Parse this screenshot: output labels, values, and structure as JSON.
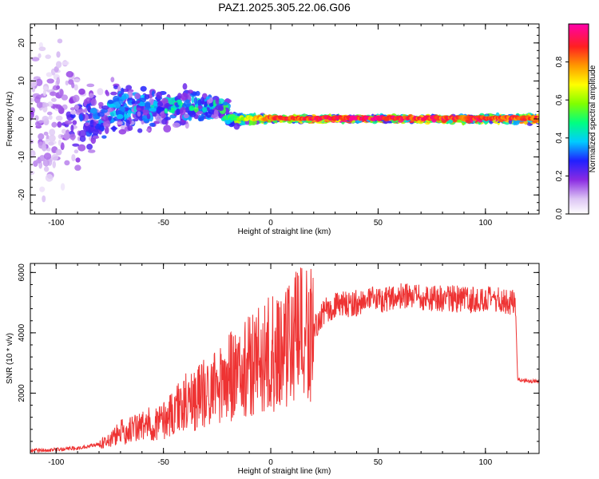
{
  "chart_data": [
    {
      "type": "heatmap",
      "title": "PAZ1.2025.305.22.06.G06",
      "xlabel": "Height of straight line (km)",
      "ylabel": "Frequency (Hz)",
      "xlim": [
        -112,
        125
      ],
      "ylim": [
        -25,
        25
      ],
      "xticks": [
        -100,
        -50,
        0,
        50,
        100
      ],
      "yticks": [
        -20,
        -10,
        0,
        10,
        20
      ],
      "colorbar": {
        "label": "Normalized spectral amplitude",
        "range": [
          0.0,
          1.0
        ],
        "ticks": [
          0.0,
          0.2,
          0.4,
          0.6,
          0.8
        ]
      },
      "description_points": [
        {
          "x": -100,
          "freq_spread": 25,
          "amplitude": 0.15
        },
        {
          "x": -80,
          "freq_spread": 8,
          "amplitude": 0.35
        },
        {
          "x": -60,
          "freq_spread": 6,
          "amplitude": 0.4
        },
        {
          "x": -40,
          "freq_spread": 5,
          "amplitude": 0.45
        },
        {
          "x": -20,
          "freq_spread": 2,
          "amplitude": 0.5
        },
        {
          "x": 0,
          "freq_spread": 0.5,
          "amplitude": 0.9
        },
        {
          "x": 50,
          "freq_spread": 0.5,
          "amplitude": 0.95
        },
        {
          "x": 100,
          "freq_spread": 0.8,
          "amplitude": 0.9
        },
        {
          "x": 125,
          "freq_spread": 1,
          "amplitude": 0.9
        }
      ]
    },
    {
      "type": "line",
      "title": "",
      "xlabel": "Height of straight line (km)",
      "ylabel": "SNR (10 * v/v)",
      "xlim": [
        -112,
        125
      ],
      "ylim": [
        0,
        6300
      ],
      "xticks": [
        -100,
        -50,
        0,
        50,
        100
      ],
      "yticks": [
        2000,
        4000,
        6000
      ],
      "series": [
        {
          "name": "SNR",
          "color": "#ee3333",
          "x": [
            -112,
            -100,
            -90,
            -80,
            -75,
            -70,
            -60,
            -50,
            -45,
            -40,
            -30,
            -25,
            -20,
            -15,
            -10,
            -5,
            0,
            5,
            10,
            15,
            20,
            25,
            30,
            40,
            50,
            60,
            70,
            80,
            90,
            100,
            110,
            114,
            115,
            120,
            125
          ],
          "y": [
            100,
            120,
            180,
            300,
            450,
            700,
            900,
            1100,
            1400,
            1700,
            2000,
            2300,
            2500,
            2650,
            2900,
            3200,
            3300,
            3500,
            3800,
            3900,
            4100,
            4700,
            4900,
            5000,
            5100,
            5200,
            5150,
            5150,
            5100,
            5100,
            5050,
            5000,
            2450,
            2400,
            2400
          ]
        }
      ]
    }
  ]
}
